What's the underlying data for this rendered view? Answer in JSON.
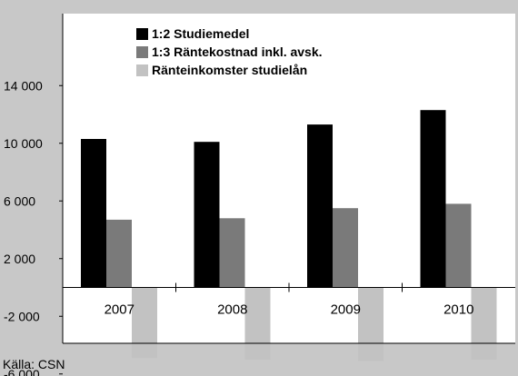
{
  "chart_data": {
    "type": "bar",
    "categories": [
      "2007",
      "2008",
      "2009",
      "2010"
    ],
    "series": [
      {
        "name": "1:2 Studiemedel",
        "color": "#000000",
        "values": [
          10300,
          10100,
          11300,
          12300
        ]
      },
      {
        "name": "1:3 Räntekostnad inkl. avsk.",
        "color": "#7a7a7a",
        "values": [
          4700,
          4800,
          5500,
          5800
        ]
      },
      {
        "name": "Ränteinkomster studielån",
        "color": "#c2c2c2",
        "values": [
          -4900,
          -5000,
          -5100,
          -5000
        ]
      }
    ],
    "yticks": [
      {
        "value": 14000,
        "label": "14 000"
      },
      {
        "value": 10000,
        "label": "10 000"
      },
      {
        "value": 6000,
        "label": "6 000"
      },
      {
        "value": 2000,
        "label": "2 000"
      },
      {
        "value": -2000,
        "label": "-2 000"
      },
      {
        "value": -6000,
        "label": "-6 000"
      }
    ],
    "ylim": [
      -6000,
      16000
    ],
    "legend_position": "top-left",
    "grid": false,
    "background_color": "#c8c8c8",
    "plot_background_color": "#ffffff"
  },
  "source_text": "Källa: CSN"
}
